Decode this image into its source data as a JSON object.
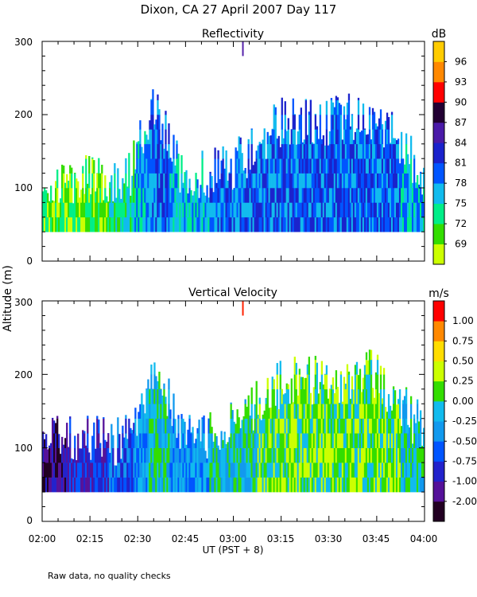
{
  "figure": {
    "title": "Dixon, CA 27 April 2007  Day 117",
    "ylabel": "Altitude (m)",
    "xlabel": "UT  (PST + 8)",
    "footnote": "Raw data, no quality checks",
    "xticks": [
      "02:00",
      "02:15",
      "02:30",
      "02:45",
      "03:00",
      "03:15",
      "03:30",
      "03:45",
      "04:00"
    ],
    "yticks": [
      "0",
      "100",
      "200",
      "300"
    ]
  },
  "chart_data": [
    {
      "type": "heatmap",
      "title": "Reflectivity",
      "colorbar_unit": "dB",
      "x_range_hours": [
        2.0,
        4.0
      ],
      "ylim": [
        0,
        300
      ],
      "colorbar_levels": [
        "69",
        "72",
        "75",
        "78",
        "81",
        "84",
        "87",
        "90",
        "93",
        "96"
      ],
      "colors": [
        "#ccff00",
        "#33dd00",
        "#00ee88",
        "#11bbee",
        "#0055ff",
        "#1a22cc",
        "#4a1aa8",
        "#220033",
        "#ff0000",
        "#ff8800",
        "#ffcc00"
      ],
      "echo_top_profile": [
        {
          "t": 2.0,
          "base": 40,
          "top": 100,
          "dominant": 1
        },
        {
          "t": 2.25,
          "base": 40,
          "top": 100,
          "dominant": 1
        },
        {
          "t": 2.45,
          "base": 40,
          "top": 100,
          "dominant": 2
        },
        {
          "t": 2.58,
          "base": 40,
          "top": 200,
          "dominant": 4
        },
        {
          "t": 2.75,
          "base": 40,
          "top": 100,
          "dominant": 3
        },
        {
          "t": 3.0,
          "base": 40,
          "top": 120,
          "dominant": 4
        },
        {
          "t": 3.25,
          "base": 40,
          "top": 180,
          "dominant": 4
        },
        {
          "t": 3.5,
          "base": 40,
          "top": 180,
          "dominant": 4
        },
        {
          "t": 3.75,
          "base": 40,
          "top": 190,
          "dominant": 4
        },
        {
          "t": 4.0,
          "base": 40,
          "top": 110,
          "dominant": 3
        }
      ],
      "marker": {
        "t": 3.05,
        "alt_low": 280,
        "alt_high": 300
      }
    },
    {
      "type": "heatmap",
      "title": "Vertical Velocity",
      "colorbar_unit": "m/s",
      "x_range_hours": [
        2.0,
        4.0
      ],
      "ylim": [
        0,
        300
      ],
      "colorbar_levels": [
        "-2.00",
        "-1.00",
        "-0.75",
        "-0.50",
        "-0.25",
        "0.00",
        "0.25",
        "0.50",
        "0.75",
        "1.00"
      ],
      "colors": [
        "#220022",
        "#551199",
        "#2222cc",
        "#0055ff",
        "#1199ee",
        "#11bbee",
        "#33dd00",
        "#ccff00",
        "#ffdd00",
        "#ff8800",
        "#ff0000"
      ],
      "echo_top_profile": [
        {
          "t": 2.0,
          "base": 40,
          "top": 100,
          "dominant": 1
        },
        {
          "t": 2.25,
          "base": 40,
          "top": 100,
          "dominant": 2
        },
        {
          "t": 2.45,
          "base": 40,
          "top": 100,
          "dominant": 3
        },
        {
          "t": 2.58,
          "base": 40,
          "top": 200,
          "dominant": 5
        },
        {
          "t": 2.75,
          "base": 40,
          "top": 100,
          "dominant": 4
        },
        {
          "t": 3.0,
          "base": 40,
          "top": 120,
          "dominant": 5
        },
        {
          "t": 3.25,
          "base": 40,
          "top": 180,
          "dominant": 6
        },
        {
          "t": 3.5,
          "base": 40,
          "top": 180,
          "dominant": 6
        },
        {
          "t": 3.75,
          "base": 40,
          "top": 190,
          "dominant": 6
        },
        {
          "t": 4.0,
          "base": 40,
          "top": 110,
          "dominant": 5
        }
      ],
      "marker": {
        "t": 3.05,
        "alt_low": 280,
        "alt_high": 300
      }
    }
  ]
}
